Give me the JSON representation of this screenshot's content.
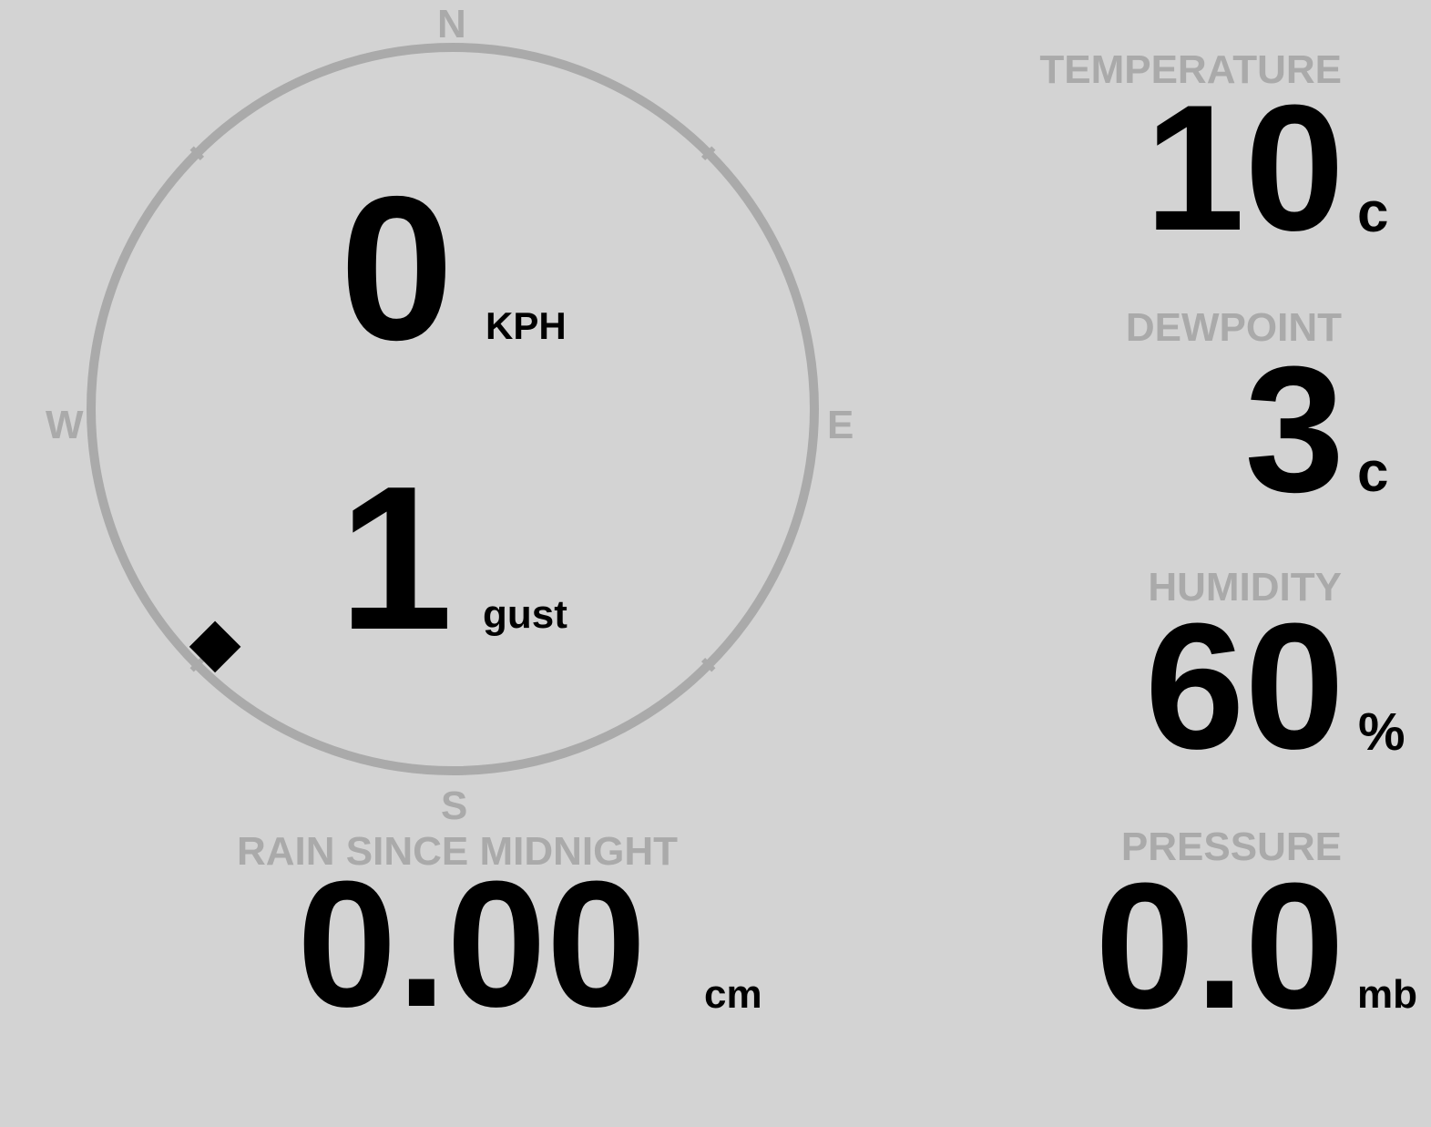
{
  "colors": {
    "background": "#d3d3d3",
    "label": "#aaaaaa",
    "value": "#000000",
    "dial": "#aaaaaa"
  },
  "compass": {
    "north": "N",
    "east": "E",
    "south": "S",
    "west": "W",
    "wind_direction_deg": 225,
    "indicator_icon": "diamond-icon"
  },
  "wind": {
    "speed": "0",
    "speed_unit": "KPH",
    "gust": "1",
    "gust_unit": "gust"
  },
  "rain": {
    "label": "RAIN SINCE MIDNIGHT",
    "value": "0.00",
    "unit": "cm"
  },
  "temperature": {
    "label": "TEMPERATURE",
    "value": "10",
    "unit": "c"
  },
  "dewpoint": {
    "label": "DEWPOINT",
    "value": "3",
    "unit": "c"
  },
  "humidity": {
    "label": "HUMIDITY",
    "value": "60",
    "unit": "%"
  },
  "pressure": {
    "label": "PRESSURE",
    "value": "0.0",
    "unit": "mb"
  }
}
